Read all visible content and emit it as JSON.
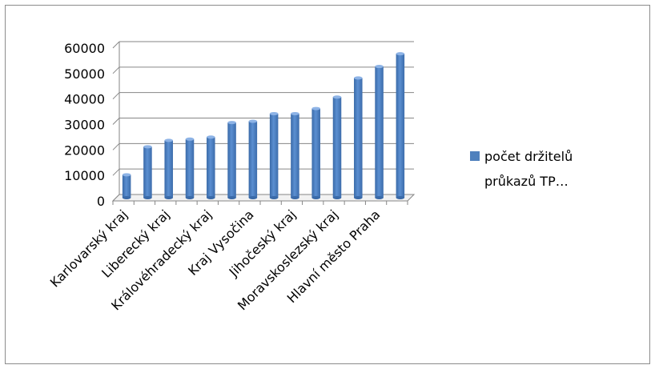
{
  "chart_data": {
    "type": "bar",
    "view": "3d-column",
    "categories": [
      "Karlovarský kraj",
      "",
      "Liberecký kraj",
      "",
      "Královéhradecký kraj",
      "",
      "Kraj Vysočina",
      "",
      "Jihočeský kraj",
      "",
      "Moravskoslezský kraj",
      "",
      "Hlavní město Praha",
      ""
    ],
    "series": [
      {
        "name": "počet držitelů průkazů TP…",
        "values": [
          9000,
          20000,
          22500,
          23000,
          23800,
          29500,
          30000,
          33000,
          33000,
          35000,
          39500,
          47000,
          51500,
          56500
        ],
        "color": "#4f81bd"
      }
    ],
    "yticks": [
      "0",
      "10000",
      "20000",
      "30000",
      "40000",
      "50000",
      "60000"
    ],
    "ylim": [
      0,
      60000
    ],
    "grid": true,
    "legend_position": "right",
    "legend_lines": [
      "počet držitelů",
      "průkazů TP…"
    ]
  }
}
